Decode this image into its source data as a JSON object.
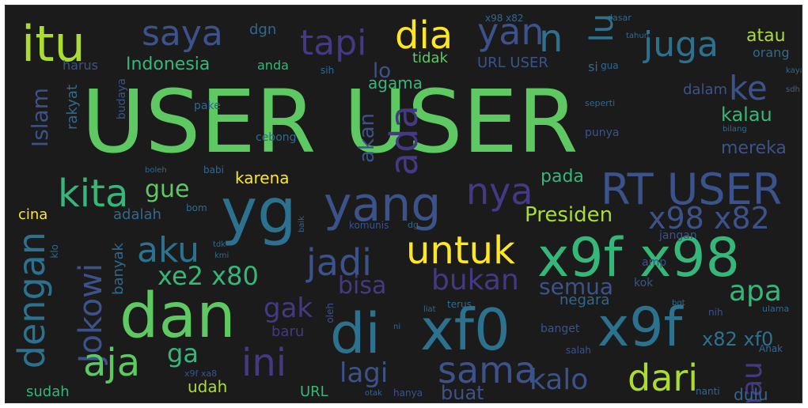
{
  "palette": {
    "background": "#1b1b1b",
    "yellow_green": "#aadc32",
    "green": "#5ec962",
    "teal_green": "#35b779",
    "teal": "#21918c",
    "blue_teal": "#2c728e",
    "blue": "#3b528b",
    "indigo": "#472d7b",
    "dark_purple": "#440154",
    "yellow": "#fde725"
  },
  "words": [
    {
      "id": "user-user",
      "text": "USER USER",
      "color": "#5ec962"
    },
    {
      "id": "itu",
      "text": "itu",
      "color": "#aadc32"
    },
    {
      "id": "saya",
      "text": "saya",
      "color": "#3b528b"
    },
    {
      "id": "tapi",
      "text": "tapi",
      "color": "#443a83"
    },
    {
      "id": "dia",
      "text": "dia",
      "color": "#fde725"
    },
    {
      "id": "yan",
      "text": "yan",
      "color": "#3b528b"
    },
    {
      "id": "n",
      "text": "n",
      "color": "#2c728e"
    },
    {
      "id": "lu",
      "text": "lu",
      "color": "#2c728e"
    },
    {
      "id": "juga",
      "text": "juga",
      "color": "#2c728e"
    },
    {
      "id": "atau",
      "text": "atau",
      "color": "#aadc32"
    },
    {
      "id": "orang",
      "text": "orang",
      "color": "#31688e"
    },
    {
      "id": "indonesia",
      "text": "Indonesia",
      "color": "#35b779"
    },
    {
      "id": "anda",
      "text": "anda",
      "color": "#35b779"
    },
    {
      "id": "harus",
      "text": "harus",
      "color": "#3b528b"
    },
    {
      "id": "tidak",
      "text": "tidak",
      "color": "#5ec962"
    },
    {
      "id": "url-user",
      "text": "URL USER",
      "color": "#3b528b"
    },
    {
      "id": "ke",
      "text": "ke",
      "color": "#3b528b"
    },
    {
      "id": "agama",
      "text": "agama",
      "color": "#35b779"
    },
    {
      "id": "islam",
      "text": "Islam",
      "color": "#3b528b"
    },
    {
      "id": "rakyat",
      "text": "rakyat",
      "color": "#31688e"
    },
    {
      "id": "kalau",
      "text": "kalau",
      "color": "#35b779"
    },
    {
      "id": "mereka",
      "text": "mereka",
      "color": "#3b528b"
    },
    {
      "id": "ada",
      "text": "ada",
      "color": "#443a83"
    },
    {
      "id": "akan",
      "text": "akan",
      "color": "#3b528b"
    },
    {
      "id": "lo",
      "text": "lo",
      "color": "#3b528b"
    },
    {
      "id": "karena",
      "text": "karena",
      "color": "#fde725"
    },
    {
      "id": "kita",
      "text": "kita",
      "color": "#35b779"
    },
    {
      "id": "gue",
      "text": "gue",
      "color": "#5ec962"
    },
    {
      "id": "yg",
      "text": "yg",
      "color": "#2c728e"
    },
    {
      "id": "yang",
      "text": "yang",
      "color": "#3b528b"
    },
    {
      "id": "nya",
      "text": "nya",
      "color": "#443a83"
    },
    {
      "id": "rt-user",
      "text": "RT USER",
      "color": "#3b528b"
    },
    {
      "id": "pada",
      "text": "pada",
      "color": "#35b779"
    },
    {
      "id": "cina",
      "text": "cina",
      "color": "#fde725"
    },
    {
      "id": "adalah",
      "text": "adalah",
      "color": "#31688e"
    },
    {
      "id": "presiden",
      "text": "Presiden",
      "color": "#aadc32"
    },
    {
      "id": "x98-x82",
      "text": "x98 x82",
      "color": "#3b528b"
    },
    {
      "id": "dengan",
      "text": "dengan",
      "color": "#2c728e"
    },
    {
      "id": "aku",
      "text": "aku",
      "color": "#2c728e"
    },
    {
      "id": "jadi",
      "text": "jadi",
      "color": "#3b528b"
    },
    {
      "id": "untuk",
      "text": "untuk",
      "color": "#fde725"
    },
    {
      "id": "x9f-x98",
      "text": "x9f x98",
      "color": "#35b779"
    },
    {
      "id": "jokowi",
      "text": "Jokowi",
      "color": "#3b528b"
    },
    {
      "id": "banyak",
      "text": "banyak",
      "color": "#31688e"
    },
    {
      "id": "xe2-x80",
      "text": "xe2 x80",
      "color": "#35b779"
    },
    {
      "id": "bisa",
      "text": "bisa",
      "color": "#443a83"
    },
    {
      "id": "bukan",
      "text": "bukan",
      "color": "#443a83"
    },
    {
      "id": "semua",
      "text": "semua",
      "color": "#3b528b"
    },
    {
      "id": "apa",
      "text": "apa",
      "color": "#35b779"
    },
    {
      "id": "dan",
      "text": "dan",
      "color": "#5ec962"
    },
    {
      "id": "gak",
      "text": "gak",
      "color": "#443a83"
    },
    {
      "id": "di",
      "text": "di",
      "color": "#2c728e"
    },
    {
      "id": "xf0",
      "text": "xf0",
      "color": "#2c728e"
    },
    {
      "id": "x9f",
      "text": "x9f",
      "color": "#2c728e"
    },
    {
      "id": "negara",
      "text": "negara",
      "color": "#31688e"
    },
    {
      "id": "aja",
      "text": "aja",
      "color": "#5ec962"
    },
    {
      "id": "ga",
      "text": "ga",
      "color": "#35b779"
    },
    {
      "id": "ini",
      "text": "ini",
      "color": "#443a83"
    },
    {
      "id": "lagi",
      "text": "lagi",
      "color": "#3b528b"
    },
    {
      "id": "sama",
      "text": "sama",
      "color": "#3b528b"
    },
    {
      "id": "kalo",
      "text": "kalo",
      "color": "#3b528b"
    },
    {
      "id": "dari",
      "text": "dari",
      "color": "#aadc32"
    },
    {
      "id": "mau",
      "text": "mau",
      "color": "#443a83"
    },
    {
      "id": "x82-xf0",
      "text": "x82 xf0",
      "color": "#2c728e"
    },
    {
      "id": "udah",
      "text": "udah",
      "color": "#aadc32"
    },
    {
      "id": "sudah",
      "text": "sudah",
      "color": "#35b779"
    },
    {
      "id": "url",
      "text": "URL",
      "color": "#35b779"
    },
    {
      "id": "buat",
      "text": "buat",
      "color": "#3b528b"
    },
    {
      "id": "dulu",
      "text": "dulu",
      "color": "#31688e"
    },
    {
      "id": "dgn",
      "text": "dgn",
      "color": "#31688e"
    },
    {
      "id": "sih",
      "text": "sih",
      "color": "#31688e"
    },
    {
      "id": "si",
      "text": "si",
      "color": "#31688e"
    },
    {
      "id": "dalam",
      "text": "dalam",
      "color": "#3b528b"
    },
    {
      "id": "budaya",
      "text": "budaya",
      "color": "#3b528b"
    },
    {
      "id": "pake",
      "text": "pake",
      "color": "#31688e"
    },
    {
      "id": "cebong",
      "text": "cebong",
      "color": "#31688e"
    },
    {
      "id": "seperti",
      "text": "seperti",
      "color": "#31688e"
    },
    {
      "id": "punya",
      "text": "punya",
      "color": "#3b528b"
    },
    {
      "id": "babi",
      "text": "babi",
      "color": "#31688e"
    },
    {
      "id": "bom",
      "text": "bom",
      "color": "#31688e"
    },
    {
      "id": "komunis",
      "text": "komunis",
      "color": "#3b528b"
    },
    {
      "id": "jangan",
      "text": "jangan",
      "color": "#3b528b"
    },
    {
      "id": "kok",
      "text": "kok",
      "color": "#3b528b"
    },
    {
      "id": "amp",
      "text": "amp",
      "color": "#3b528b"
    },
    {
      "id": "oleh",
      "text": "oleh",
      "color": "#3b528b"
    },
    {
      "id": "terus",
      "text": "terus",
      "color": "#31688e"
    },
    {
      "id": "nih",
      "text": "nih",
      "color": "#3b528b"
    },
    {
      "id": "banget",
      "text": "banget",
      "color": "#3b528b"
    },
    {
      "id": "salah",
      "text": "salah",
      "color": "#3b528b"
    },
    {
      "id": "hanya",
      "text": "hanya",
      "color": "#3b528b"
    },
    {
      "id": "nanti",
      "text": "nanti",
      "color": "#31688e"
    },
    {
      "id": "baru",
      "text": "baru",
      "color": "#443a83"
    },
    {
      "id": "x9f-xa8",
      "text": "x9f xa8",
      "color": "#3b528b"
    },
    {
      "id": "kaya",
      "text": "kaya",
      "color": "#31688e"
    },
    {
      "id": "anak",
      "text": "Anak",
      "color": "#31688e"
    },
    {
      "id": "bilang",
      "text": "bilang",
      "color": "#31688e"
    },
    {
      "id": "ulama",
      "text": "ulama",
      "color": "#31688e"
    },
    {
      "id": "klo",
      "text": "klo",
      "color": "#31688e"
    },
    {
      "id": "tdk",
      "text": "tdk",
      "color": "#31688e"
    },
    {
      "id": "kmi",
      "text": "kmi",
      "color": "#31688e"
    },
    {
      "id": "otak",
      "text": "otak",
      "color": "#31688e"
    },
    {
      "id": "liat",
      "text": "liat",
      "color": "#31688e"
    },
    {
      "id": "bgt",
      "text": "bgt",
      "color": "#31688e"
    },
    {
      "id": "sdh",
      "text": "sdh",
      "color": "#31688e"
    },
    {
      "id": "ni",
      "text": "ni",
      "color": "#31688e"
    },
    {
      "id": "x98-x82-small",
      "text": "x98 x82",
      "color": "#31688e"
    },
    {
      "id": "dasar",
      "text": "dasar",
      "color": "#31688e"
    },
    {
      "id": "tahun",
      "text": "tahun",
      "color": "#31688e"
    },
    {
      "id": "gua",
      "text": "gua",
      "color": "#31688e"
    },
    {
      "id": "dg",
      "text": "dg",
      "color": "#31688e"
    },
    {
      "id": "baik",
      "text": "baik",
      "color": "#31688e"
    },
    {
      "id": "boleh",
      "text": "boleh",
      "color": "#31688e"
    }
  ]
}
